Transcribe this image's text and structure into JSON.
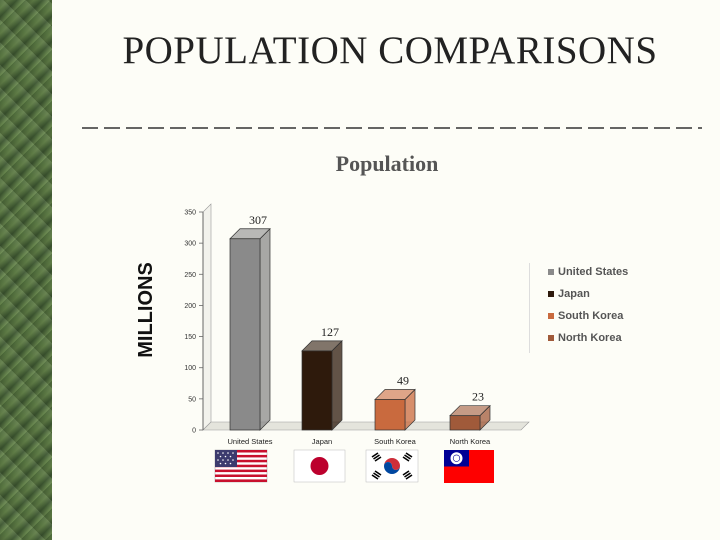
{
  "slide_title": "POPULATION COMPARISONS",
  "chart_data": {
    "type": "bar",
    "title": "Population",
    "ylabel": "MILLIONS",
    "xlabel": "",
    "categories": [
      "United States",
      "Japan",
      "South Korea",
      "North Korea"
    ],
    "series": [
      {
        "name": "United States",
        "values": [
          307,
          null,
          null,
          null
        ],
        "color": "#8a8a8a"
      },
      {
        "name": "Japan",
        "values": [
          null,
          127,
          null,
          null
        ],
        "color": "#2e1a0c"
      },
      {
        "name": "South Korea",
        "values": [
          null,
          null,
          49,
          null
        ],
        "color": "#c96a3e"
      },
      {
        "name": "North Korea",
        "values": [
          null,
          null,
          null,
          23
        ],
        "color": "#a05a3a"
      }
    ],
    "values": [
      307,
      127,
      49,
      23
    ],
    "data_labels": [
      "307",
      "127",
      "49",
      "23"
    ],
    "yticks": [
      "0",
      "50",
      "100",
      "150",
      "200",
      "250",
      "300",
      "350"
    ],
    "ylim": [
      0,
      350
    ],
    "legend": [
      "United States",
      "Japan",
      "South Korea",
      "North Korea"
    ],
    "legend_position": "right",
    "grid": false
  },
  "flags": [
    {
      "country": "United States",
      "icon": "us-flag-icon"
    },
    {
      "country": "Japan",
      "icon": "japan-flag-icon"
    },
    {
      "country": "South Korea",
      "icon": "south-korea-flag-icon"
    },
    {
      "country": "Taiwan",
      "icon": "taiwan-flag-icon"
    }
  ]
}
